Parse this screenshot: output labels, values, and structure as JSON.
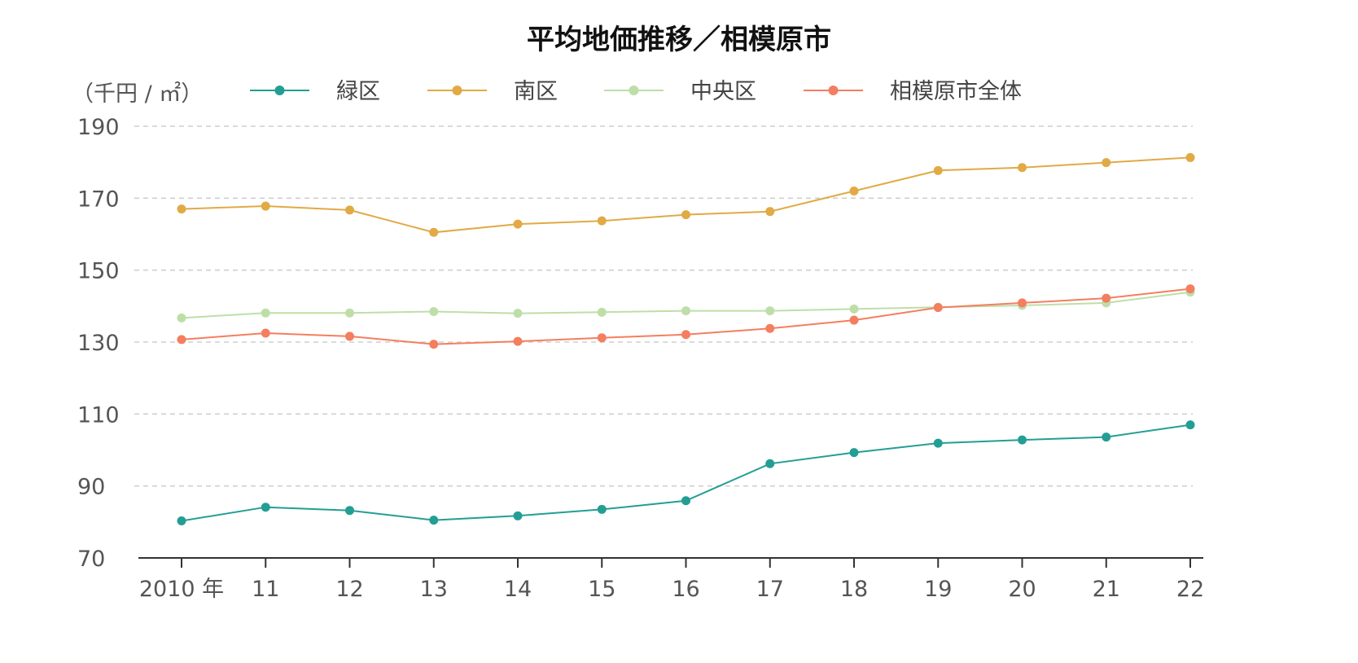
{
  "chart_data": {
    "type": "line",
    "title": "平均地価推移／相模原市",
    "ylabel": "（千円 / ㎡）",
    "xlabel": "",
    "x_labels": [
      "2010 年",
      "11",
      "12",
      "13",
      "14",
      "15",
      "16",
      "17",
      "18",
      "19",
      "20",
      "21",
      "22"
    ],
    "ylim": [
      70,
      190
    ],
    "yticks": [
      70,
      90,
      110,
      130,
      150,
      170,
      190
    ],
    "grid": true,
    "legend_position": "top",
    "series": [
      {
        "name": "緑区",
        "color": "#239e94",
        "values": [
          80.3,
          84.1,
          83.2,
          80.5,
          81.7,
          83.5,
          85.9,
          96.2,
          99.3,
          101.9,
          102.8,
          103.6,
          107.0
        ]
      },
      {
        "name": "南区",
        "color": "#e1aa45",
        "values": [
          167.0,
          167.8,
          166.7,
          160.5,
          162.8,
          163.7,
          165.4,
          166.3,
          172.0,
          177.7,
          178.5,
          179.9,
          181.3
        ]
      },
      {
        "name": "中央区",
        "color": "#bedea8",
        "values": [
          136.7,
          138.1,
          138.1,
          138.5,
          138.0,
          138.3,
          138.7,
          138.7,
          139.2,
          139.7,
          140.2,
          140.9,
          143.9
        ]
      },
      {
        "name": "相模原市全体",
        "color": "#f47e60",
        "values": [
          130.7,
          132.5,
          131.6,
          129.4,
          130.2,
          131.2,
          132.1,
          133.8,
          136.1,
          139.6,
          140.9,
          142.2,
          144.8
        ]
      }
    ]
  }
}
